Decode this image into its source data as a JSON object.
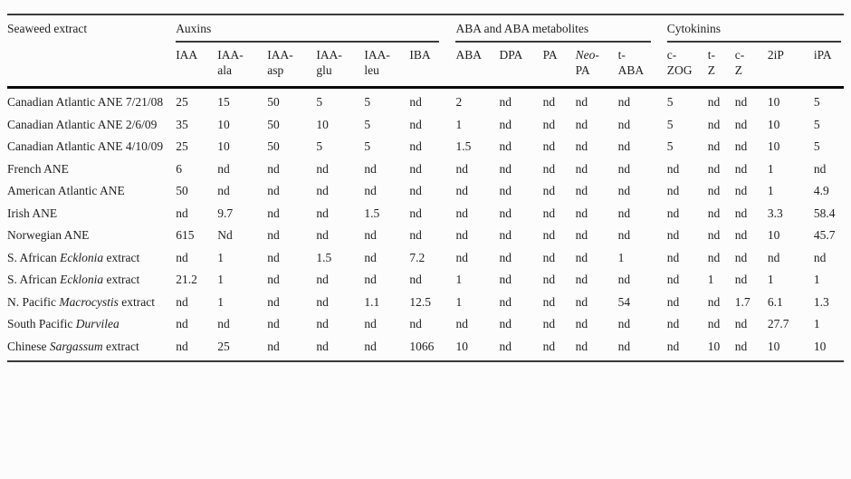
{
  "page": {
    "background": "#fcfcfc",
    "text_color": "#1f1f1f",
    "thin_rule_color": "#3a3a3a",
    "thick_rule_color": "#0a0a0a"
  },
  "table": {
    "row_header": "Seaweed extract",
    "groups": [
      {
        "label": "Auxins",
        "span": 6
      },
      {
        "label": "ABA and ABA metabolites",
        "span": 5
      },
      {
        "label": "Cytokinins",
        "span": 5
      }
    ],
    "columns": [
      {
        "id": "iaa",
        "line1": "IAA",
        "line2": "",
        "line1_italic": false
      },
      {
        "id": "iaa-ala",
        "line1": "IAA-",
        "line2": "ala",
        "line1_italic": false
      },
      {
        "id": "iaa-asp",
        "line1": "IAA-",
        "line2": "asp",
        "line1_italic": false
      },
      {
        "id": "iaa-glu",
        "line1": "IAA-",
        "line2": "glu",
        "line1_italic": false
      },
      {
        "id": "iaa-leu",
        "line1": "IAA-",
        "line2": "leu",
        "line1_italic": false
      },
      {
        "id": "iba",
        "line1": "IBA",
        "line2": "",
        "line1_italic": false
      },
      {
        "id": "aba",
        "line1": "ABA",
        "line2": "",
        "line1_italic": false
      },
      {
        "id": "dpa",
        "line1": "DPA",
        "line2": "",
        "line1_italic": false
      },
      {
        "id": "pa",
        "line1": "PA",
        "line2": "",
        "line1_italic": false
      },
      {
        "id": "neo-pa",
        "line1": "Neo-",
        "line2": "PA",
        "line1_italic": true
      },
      {
        "id": "t-aba",
        "line1": "t-",
        "line2": "ABA",
        "line1_italic": false
      },
      {
        "id": "c-zog",
        "line1": "c-",
        "line2": "ZOG",
        "line1_italic": false
      },
      {
        "id": "t-z",
        "line1": "t-",
        "line2": "Z",
        "line1_italic": false
      },
      {
        "id": "c-z",
        "line1": "c-",
        "line2": "Z",
        "line1_italic": false
      },
      {
        "id": "2ip",
        "line1": "2iP",
        "line2": "",
        "line1_italic": false
      },
      {
        "id": "ipa",
        "line1": "iPA",
        "line2": "",
        "line1_italic": false
      }
    ],
    "rows": [
      {
        "name": [
          {
            "t": "Canadian Atlantic ANE 7/21/08",
            "i": false
          }
        ],
        "values": [
          "25",
          "15",
          "50",
          "5",
          "5",
          "nd",
          "2",
          "nd",
          "nd",
          "nd",
          "nd",
          "5",
          "nd",
          "nd",
          "10",
          "5"
        ]
      },
      {
        "name": [
          {
            "t": "Canadian Atlantic ANE 2/6/09",
            "i": false
          }
        ],
        "values": [
          "35",
          "10",
          "50",
          "10",
          "5",
          "nd",
          "1",
          "nd",
          "nd",
          "nd",
          "nd",
          "5",
          "nd",
          "nd",
          "10",
          "5"
        ]
      },
      {
        "name": [
          {
            "t": "Canadian Atlantic ANE 4/10/09",
            "i": false
          }
        ],
        "values": [
          "25",
          "10",
          "50",
          "5",
          "5",
          "nd",
          "1.5",
          "nd",
          "nd",
          "nd",
          "nd",
          "5",
          "nd",
          "nd",
          "10",
          "5"
        ]
      },
      {
        "name": [
          {
            "t": "French ANE",
            "i": false
          }
        ],
        "values": [
          "6",
          "nd",
          "nd",
          "nd",
          "nd",
          "nd",
          "nd",
          "nd",
          "nd",
          "nd",
          "nd",
          "nd",
          "nd",
          "nd",
          "1",
          "nd"
        ]
      },
      {
        "name": [
          {
            "t": "American Atlantic ANE",
            "i": false
          }
        ],
        "values": [
          "50",
          "nd",
          "nd",
          "nd",
          "nd",
          "nd",
          "nd",
          "nd",
          "nd",
          "nd",
          "nd",
          "nd",
          "nd",
          "nd",
          "1",
          "4.9"
        ]
      },
      {
        "name": [
          {
            "t": "Irish ANE",
            "i": false
          }
        ],
        "values": [
          "nd",
          "9.7",
          "nd",
          "nd",
          "1.5",
          "nd",
          "nd",
          "nd",
          "nd",
          "nd",
          "nd",
          "nd",
          "nd",
          "nd",
          "3.3",
          "58.4"
        ]
      },
      {
        "name": [
          {
            "t": "Norwegian ANE",
            "i": false
          }
        ],
        "values": [
          "615",
          "Nd",
          "nd",
          "nd",
          "nd",
          "nd",
          "nd",
          "nd",
          "nd",
          "nd",
          "nd",
          "nd",
          "nd",
          "nd",
          "10",
          "45.7"
        ]
      },
      {
        "name": [
          {
            "t": "S. African ",
            "i": false
          },
          {
            "t": "Ecklonia",
            "i": true
          },
          {
            "t": " extract",
            "i": false
          }
        ],
        "values": [
          "nd",
          "1",
          "nd",
          "1.5",
          "nd",
          "7.2",
          "nd",
          "nd",
          "nd",
          "nd",
          "1",
          "nd",
          "nd",
          "nd",
          "nd",
          "nd"
        ]
      },
      {
        "name": [
          {
            "t": "S. African ",
            "i": false
          },
          {
            "t": "Ecklonia",
            "i": true
          },
          {
            "t": " extract",
            "i": false
          }
        ],
        "values": [
          "21.2",
          "1",
          "nd",
          "nd",
          "nd",
          "nd",
          "1",
          "nd",
          "nd",
          "nd",
          "nd",
          "nd",
          "1",
          "nd",
          "1",
          "1"
        ]
      },
      {
        "name": [
          {
            "t": "N. Pacific ",
            "i": false
          },
          {
            "t": "Macrocystis",
            "i": true
          },
          {
            "t": " extract",
            "i": false
          }
        ],
        "values": [
          "nd",
          "1",
          "nd",
          "nd",
          "1.1",
          "12.5",
          "1",
          "nd",
          "nd",
          "nd",
          "54",
          "nd",
          "nd",
          "1.7",
          "6.1",
          "1.3"
        ]
      },
      {
        "name": [
          {
            "t": "South Pacific ",
            "i": false
          },
          {
            "t": "Durvilea",
            "i": true
          }
        ],
        "values": [
          "nd",
          "nd",
          "nd",
          "nd",
          "nd",
          "nd",
          "nd",
          "nd",
          "nd",
          "nd",
          "nd",
          "nd",
          "nd",
          "nd",
          "27.7",
          "1"
        ]
      },
      {
        "name": [
          {
            "t": "Chinese ",
            "i": false
          },
          {
            "t": "Sargassum",
            "i": true
          },
          {
            "t": " extract",
            "i": false
          }
        ],
        "values": [
          "nd",
          "25",
          "nd",
          "nd",
          "nd",
          "1066",
          "10",
          "nd",
          "nd",
          "nd",
          "nd",
          "nd",
          "10",
          "nd",
          "10",
          "10"
        ]
      }
    ]
  }
}
